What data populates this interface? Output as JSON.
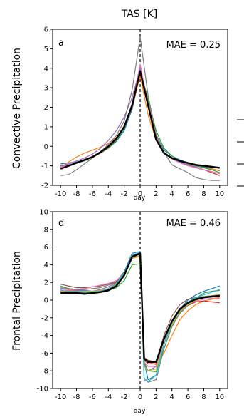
{
  "figure_title": "TAS [K]",
  "chart_data": [
    {
      "type": "line",
      "panel_label": "a",
      "annotation": "MAE = 0.25",
      "ylabel": "Convective Precipitation",
      "xlabel": "day",
      "xlim": [
        -11,
        11
      ],
      "ylim": [
        -2,
        6
      ],
      "xticks": [
        -10,
        -8,
        -6,
        -4,
        -2,
        0,
        2,
        4,
        6,
        8,
        10
      ],
      "yticks": [
        -2,
        -1,
        0,
        1,
        2,
        3,
        4,
        5,
        6
      ],
      "vline_at": 0,
      "x": [
        -10,
        -9,
        -8,
        -7,
        -6,
        -5,
        -4,
        -3,
        -2,
        -1,
        0,
        1,
        2,
        3,
        4,
        5,
        6,
        7,
        8,
        9,
        10
      ],
      "series": [
        {
          "color": "#1f77b4",
          "values": [
            -0.9,
            -0.85,
            -0.8,
            -0.7,
            -0.55,
            -0.35,
            -0.1,
            0.25,
            0.8,
            1.9,
            3.7,
            2.1,
            0.6,
            -0.2,
            -0.5,
            -0.7,
            -0.85,
            -0.95,
            -1.05,
            -1.15,
            -1.25
          ]
        },
        {
          "color": "#ff7f0e",
          "values": [
            -1.1,
            -0.8,
            -0.55,
            -0.35,
            -0.2,
            -0.05,
            0.15,
            0.45,
            0.95,
            2.0,
            3.6,
            1.6,
            0.3,
            -0.35,
            -0.6,
            -0.75,
            -0.9,
            -1.0,
            -1.1,
            -1.15,
            -1.25
          ]
        },
        {
          "color": "#2ca02c",
          "values": [
            -1.0,
            -0.95,
            -0.85,
            -0.75,
            -0.55,
            -0.35,
            -0.1,
            0.3,
            0.9,
            2.1,
            3.95,
            2.4,
            0.8,
            -0.1,
            -0.5,
            -0.75,
            -0.9,
            -1.0,
            -1.1,
            -1.2,
            -1.35
          ]
        },
        {
          "color": "#d62728",
          "values": [
            -1.0,
            -0.95,
            -0.85,
            -0.7,
            -0.55,
            -0.35,
            -0.05,
            0.35,
            1.0,
            2.2,
            4.1,
            2.2,
            0.5,
            -0.3,
            -0.6,
            -0.8,
            -0.95,
            -1.1,
            -1.2,
            -1.35,
            -1.5
          ]
        },
        {
          "color": "#9467bd",
          "values": [
            -1.0,
            -0.9,
            -0.75,
            -0.6,
            -0.4,
            -0.1,
            0.3,
            0.8,
            1.5,
            2.5,
            4.0,
            2.0,
            0.5,
            -0.3,
            -0.6,
            -0.8,
            -0.95,
            -1.05,
            -1.2,
            -1.3,
            -1.4
          ]
        },
        {
          "color": "#e377c2",
          "values": [
            -1.05,
            -0.95,
            -0.85,
            -0.7,
            -0.5,
            -0.3,
            0.0,
            0.4,
            1.05,
            2.15,
            4.2,
            2.1,
            0.5,
            -0.35,
            -0.65,
            -0.85,
            -1.0,
            -1.1,
            -1.2,
            -1.3,
            -1.4
          ]
        },
        {
          "color": "#7f7f7f",
          "values": [
            -1.5,
            -1.45,
            -1.2,
            -0.9,
            -0.6,
            -0.3,
            0.1,
            0.55,
            1.3,
            2.9,
            5.6,
            2.6,
            0.6,
            -0.3,
            -0.95,
            -1.15,
            -1.35,
            -1.6,
            -1.7,
            -1.75,
            -1.75
          ]
        },
        {
          "color": "#000000",
          "bold": true,
          "values": [
            -1.15,
            -1.0,
            -0.85,
            -0.7,
            -0.55,
            -0.3,
            0.0,
            0.4,
            1.0,
            2.1,
            3.85,
            2.1,
            0.35,
            -0.35,
            -0.6,
            -0.75,
            -0.85,
            -0.95,
            -1.0,
            -1.05,
            -1.1
          ]
        }
      ]
    },
    {
      "type": "line",
      "panel_label": "d",
      "annotation": "MAE = 0.46",
      "ylabel": "Frontal Precipitation",
      "xlabel": "day",
      "xlim": [
        -11,
        11
      ],
      "ylim": [
        -10,
        10
      ],
      "xticks": [
        -10,
        -8,
        -6,
        -4,
        -2,
        0,
        2,
        4,
        6,
        8,
        10
      ],
      "yticks": [
        -10,
        -8,
        -6,
        -4,
        -2,
        0,
        2,
        4,
        6,
        8,
        10
      ],
      "vline_at": 0,
      "x": [
        -10,
        -9,
        -8,
        -7,
        -6,
        -5,
        -4,
        -3,
        -2,
        -1,
        0,
        0.5,
        1,
        2,
        3,
        4,
        5,
        6,
        7,
        8,
        9,
        10
      ],
      "series": [
        {
          "color": "#1f77b4",
          "values": [
            1.0,
            1.0,
            0.9,
            0.8,
            0.9,
            1.0,
            1.3,
            1.9,
            3.2,
            5.3,
            5.5,
            -7.0,
            -9.0,
            -8.5,
            -5.0,
            -2.5,
            -1.0,
            0.0,
            0.6,
            1.0,
            1.3,
            1.6
          ]
        },
        {
          "color": "#ff7f0e",
          "values": [
            1.0,
            1.1,
            1.1,
            1.0,
            1.0,
            1.1,
            1.3,
            1.9,
            3.0,
            4.7,
            5.0,
            -6.7,
            -7.0,
            -7.3,
            -6.0,
            -4.0,
            -2.2,
            -1.2,
            -0.5,
            -0.1,
            0.1,
            0.2
          ]
        },
        {
          "color": "#2ca02c",
          "values": [
            1.6,
            1.3,
            1.2,
            1.1,
            1.0,
            1.0,
            1.1,
            1.4,
            2.2,
            4.0,
            4.1,
            -7.0,
            -8.0,
            -8.1,
            -5.5,
            -3.0,
            -1.4,
            -0.4,
            0.2,
            0.8,
            1.0,
            1.1
          ]
        },
        {
          "color": "#d62728",
          "values": [
            1.0,
            0.9,
            0.9,
            0.9,
            0.9,
            1.0,
            1.2,
            1.8,
            3.0,
            4.8,
            5.2,
            -6.8,
            -7.2,
            -7.2,
            -4.5,
            -2.5,
            -1.2,
            -0.6,
            -0.2,
            -0.1,
            -0.2,
            -0.3
          ]
        },
        {
          "color": "#9467bd",
          "values": [
            1.3,
            1.2,
            1.1,
            1.1,
            1.0,
            1.2,
            1.5,
            2.0,
            3.1,
            5.1,
            5.3,
            -7.3,
            -8.0,
            -7.5,
            -4.5,
            -2.6,
            -1.2,
            -0.4,
            0.0,
            0.3,
            0.5,
            0.6
          ]
        },
        {
          "color": "#8c564b",
          "values": [
            1.8,
            1.6,
            1.4,
            1.4,
            1.5,
            1.6,
            1.8,
            2.1,
            3.2,
            4.8,
            5.0,
            -6.5,
            -6.8,
            -7.0,
            -4.0,
            -1.8,
            -0.5,
            0.1,
            0.3,
            0.4,
            0.5,
            0.5
          ]
        },
        {
          "color": "#e377c2",
          "values": [
            1.2,
            1.2,
            1.2,
            1.3,
            1.5,
            1.7,
            1.9,
            2.2,
            3.0,
            5.0,
            5.1,
            -7.0,
            -7.5,
            -7.5,
            -5.0,
            -2.8,
            -1.3,
            -0.5,
            -0.1,
            0.1,
            0.2,
            0.3
          ]
        },
        {
          "color": "#7f7f7f",
          "values": [
            1.4,
            1.3,
            1.2,
            1.2,
            1.3,
            1.4,
            1.7,
            2.0,
            3.0,
            5.0,
            5.2,
            -9.0,
            -9.3,
            -9.0,
            -5.5,
            -3.0,
            -1.5,
            -0.6,
            0.0,
            0.4,
            0.5,
            0.5
          ]
        },
        {
          "color": "#bcbd22",
          "values": [
            1.0,
            1.0,
            1.0,
            1.0,
            1.0,
            1.1,
            1.3,
            1.8,
            3.0,
            4.8,
            5.0,
            -7.5,
            -8.0,
            -7.8,
            -5.0,
            -2.8,
            -1.3,
            -0.5,
            0.0,
            0.3,
            0.5,
            0.6
          ]
        },
        {
          "color": "#17becf",
          "values": [
            1.1,
            1.0,
            1.0,
            0.9,
            0.9,
            1.0,
            1.3,
            1.8,
            3.1,
            5.1,
            5.4,
            -8.8,
            -9.2,
            -8.5,
            -5.0,
            -2.6,
            -1.1,
            -0.2,
            0.3,
            0.6,
            0.9,
            1.2
          ]
        },
        {
          "color": "#000000",
          "bold": true,
          "values": [
            0.8,
            0.8,
            0.8,
            0.7,
            0.8,
            0.9,
            1.1,
            1.6,
            2.8,
            4.9,
            5.3,
            -6.6,
            -7.0,
            -7.0,
            -4.4,
            -2.4,
            -1.0,
            -0.3,
            0.1,
            0.3,
            0.4,
            0.5
          ]
        }
      ]
    }
  ]
}
